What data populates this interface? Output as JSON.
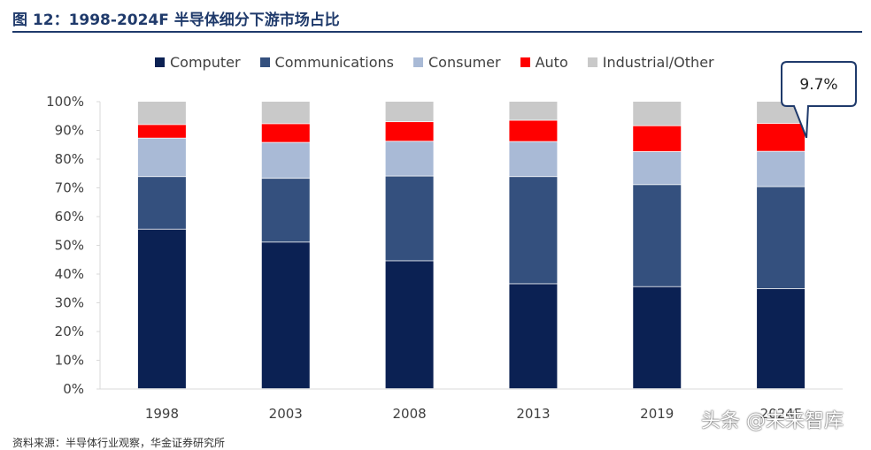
{
  "figure": {
    "title": "图 12：1998-2024F 半导体细分下游市场占比"
  },
  "chart_data": {
    "type": "bar",
    "stacked": true,
    "categories": [
      "1998",
      "2003",
      "2008",
      "2013",
      "2019",
      "2024F"
    ],
    "series": [
      {
        "name": "Computer",
        "color": "#0b2153",
        "values": [
          55.5,
          51.0,
          44.5,
          36.5,
          35.5,
          34.8
        ]
      },
      {
        "name": "Communications",
        "color": "#34507e",
        "values": [
          18.3,
          22.2,
          29.5,
          37.3,
          35.5,
          35.5
        ]
      },
      {
        "name": "Consumer",
        "color": "#a9bad6",
        "values": [
          13.4,
          12.5,
          12.1,
          12.2,
          11.5,
          12.3
        ]
      },
      {
        "name": "Auto",
        "color": "#ff0000",
        "values": [
          4.7,
          6.5,
          6.8,
          7.4,
          9.0,
          9.7
        ]
      },
      {
        "name": "Industrial/Other",
        "color": "#c9c9c9",
        "values": [
          8.1,
          7.8,
          7.1,
          6.6,
          8.5,
          7.7
        ]
      }
    ],
    "ylim": [
      0,
      100
    ],
    "yticks": [
      "0%",
      "10%",
      "20%",
      "30%",
      "40%",
      "50%",
      "60%",
      "70%",
      "80%",
      "90%",
      "100%"
    ],
    "grid": false,
    "legend_position": "top",
    "annotation": {
      "text": "9.7%",
      "category": "2024F",
      "series": "Auto"
    }
  },
  "footer": {
    "source": "资料来源：半导体行业观察，华金证券研究所"
  },
  "watermark": {
    "text": "头条 @未来智库"
  }
}
